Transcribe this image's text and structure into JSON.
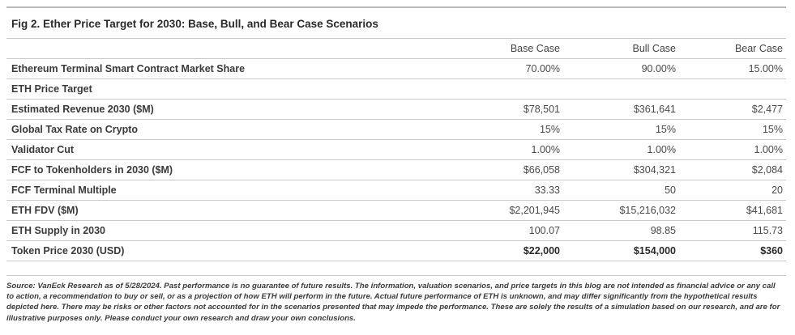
{
  "figure": {
    "title": "Fig 2. Ether Price Target for 2030: Base, Bull, and Bear Case Scenarios"
  },
  "table": {
    "columns": [
      "",
      "Base Case",
      "Bull Case",
      "Bear Case"
    ],
    "rows": [
      {
        "label": "Ethereum Terminal Smart Contract Market Share",
        "values": [
          "70.00%",
          "90.00%",
          "15.00%"
        ]
      },
      {
        "label": "ETH Price Target",
        "values": [
          "",
          "",
          ""
        ]
      },
      {
        "label": "Estimated Revenue 2030 ($M)",
        "values": [
          "$78,501",
          "$361,641",
          "$2,477"
        ]
      },
      {
        "label": "Global Tax Rate on Crypto",
        "values": [
          "15%",
          "15%",
          "15%"
        ]
      },
      {
        "label": "Validator Cut",
        "values": [
          "1.00%",
          "1.00%",
          "1.00%"
        ]
      },
      {
        "label": "FCF to Tokenholders in 2030 ($M)",
        "values": [
          "$66,058",
          "$304,321",
          "$2,084"
        ]
      },
      {
        "label": "FCF Terminal Multiple",
        "values": [
          "33.33",
          "50",
          "20"
        ]
      },
      {
        "label": "ETH FDV ($M)",
        "values": [
          "$2,201,945",
          "$15,216,032",
          "$41,681"
        ]
      },
      {
        "label": "ETH Supply in 2030",
        "values": [
          "100.07",
          "98.85",
          "115.73"
        ]
      },
      {
        "label": "Token Price 2030 (USD)",
        "values": [
          "$22,000",
          "$154,000",
          "$360"
        ]
      }
    ]
  },
  "source": {
    "text": "Source: VanEck Research as of 5/28/2024. Past performance is no guarantee of future results. The information, valuation scenarios, and price targets in this blog are not intended as financial advice or any call to action, a recommendation to buy or sell, or as a projection of how ETH will perform in the future. Actual future performance of ETH is unknown, and may differ significantly from the hypothetical results depicted here. There may be risks or other factors not accounted for in the scenarios presented that may impede the performance. These are solely the results of a simulation based on our research, and are for illustrative purposes only. Please conduct your own research and draw your own conclusions."
  }
}
